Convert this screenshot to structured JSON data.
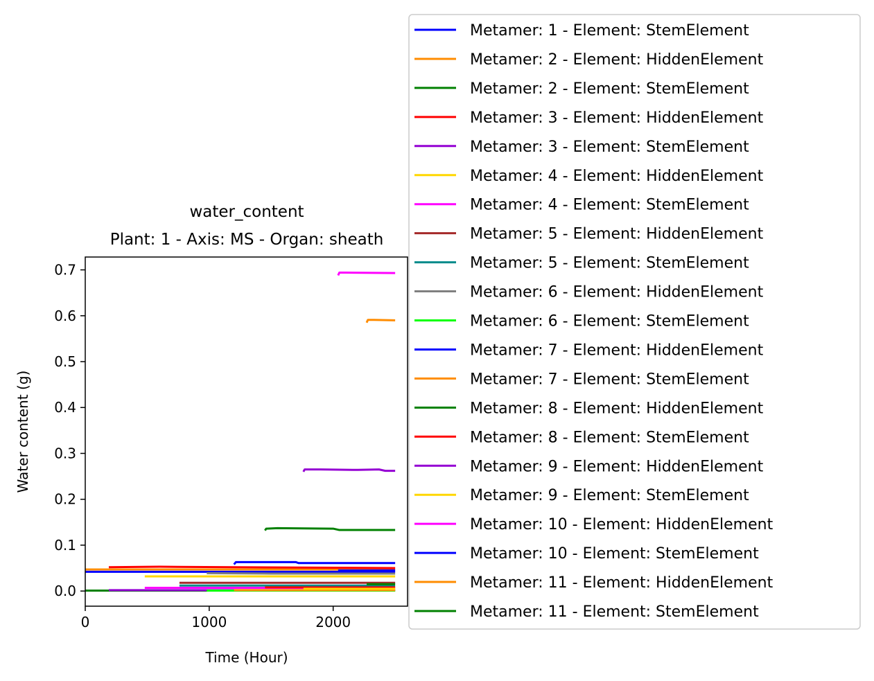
{
  "chart_data": {
    "type": "line",
    "title": "water_content",
    "subtitle": "Plant: 1 - Axis: MS - Organ: sheath",
    "xlabel": "Time (Hour)",
    "ylabel": "Water content (g)",
    "xlim": [
      0,
      2600
    ],
    "ylim": [
      -0.033,
      0.728
    ],
    "xticks": [
      0,
      1000,
      2000
    ],
    "yticks": [
      0.0,
      0.1,
      0.2,
      0.3,
      0.4,
      0.5,
      0.6,
      0.7
    ],
    "xtick_labels": [
      "0",
      "1000",
      "2000"
    ],
    "ytick_labels": [
      "0.0",
      "0.1",
      "0.2",
      "0.3",
      "0.4",
      "0.5",
      "0.6",
      "0.7"
    ],
    "grid": false,
    "legend_position": "outside-right",
    "series": [
      {
        "name": "Metamer: 1 - Element: StemElement",
        "color": "#0000ff",
        "x": [
          0,
          2500
        ],
        "y": [
          0.042,
          0.042
        ]
      },
      {
        "name": "Metamer: 2 - Element: HiddenElement",
        "color": "#ff8c00",
        "x": [
          0,
          2500
        ],
        "y": [
          0.047,
          0.047
        ]
      },
      {
        "name": "Metamer: 2 - Element: StemElement",
        "color": "#008000",
        "x": [
          0,
          2500
        ],
        "y": [
          0.001,
          0.001
        ]
      },
      {
        "name": "Metamer: 3 - Element: HiddenElement",
        "color": "#ff0000",
        "x": [
          190,
          600,
          1200,
          2500
        ],
        "y": [
          0.052,
          0.053,
          0.052,
          0.05
        ]
      },
      {
        "name": "Metamer: 3 - Element: StemElement",
        "color": "#9400d3",
        "x": [
          190,
          2500
        ],
        "y": [
          0.002,
          0.002
        ]
      },
      {
        "name": "Metamer: 4 - Element: HiddenElement",
        "color": "#ffd700",
        "x": [
          480,
          2500
        ],
        "y": [
          0.032,
          0.032
        ]
      },
      {
        "name": "Metamer: 4 - Element: StemElement",
        "color": "#ff00ff",
        "x": [
          480,
          2500
        ],
        "y": [
          0.007,
          0.007
        ]
      },
      {
        "name": "Metamer: 5 - Element: HiddenElement",
        "color": "#a52a2a",
        "x": [
          760,
          2500
        ],
        "y": [
          0.018,
          0.018
        ]
      },
      {
        "name": "Metamer: 5 - Element: StemElement",
        "color": "#008b8b",
        "x": [
          760,
          2500
        ],
        "y": [
          0.012,
          0.012
        ]
      },
      {
        "name": "Metamer: 6 - Element: HiddenElement",
        "color": "#808080",
        "x": [
          980,
          1500,
          2500
        ],
        "y": [
          0.039,
          0.038,
          0.038
        ]
      },
      {
        "name": "Metamer: 6 - Element: StemElement",
        "color": "#00ff00",
        "x": [
          980,
          2500
        ],
        "y": [
          0.001,
          0.001
        ]
      },
      {
        "name": "Metamer: 7 - Element: HiddenElement",
        "color": "#0000ff",
        "x": [
          1200,
          1215,
          1700,
          1720,
          2500
        ],
        "y": [
          0.058,
          0.063,
          0.063,
          0.061,
          0.061
        ]
      },
      {
        "name": "Metamer: 7 - Element: StemElement",
        "color": "#ff8c00",
        "x": [
          1200,
          2500
        ],
        "y": [
          0.002,
          0.002
        ]
      },
      {
        "name": "Metamer: 8 - Element: HiddenElement",
        "color": "#008000",
        "x": [
          1450,
          1460,
          1550,
          2000,
          2050,
          2500
        ],
        "y": [
          0.132,
          0.136,
          0.137,
          0.136,
          0.133,
          0.133
        ]
      },
      {
        "name": "Metamer: 8 - Element: StemElement",
        "color": "#ff0000",
        "x": [
          1450,
          2500
        ],
        "y": [
          0.008,
          0.008
        ]
      },
      {
        "name": "Metamer: 9 - Element: HiddenElement",
        "color": "#9400d3",
        "x": [
          1760,
          1770,
          1900,
          2200,
          2370,
          2420,
          2500
        ],
        "y": [
          0.26,
          0.265,
          0.265,
          0.264,
          0.265,
          0.262,
          0.262
        ]
      },
      {
        "name": "Metamer: 9 - Element: StemElement",
        "color": "#ffd700",
        "x": [
          1760,
          2500
        ],
        "y": [
          0.005,
          0.005
        ]
      },
      {
        "name": "Metamer: 10 - Element: HiddenElement",
        "color": "#ff00ff",
        "x": [
          2040,
          2050,
          2100,
          2500
        ],
        "y": [
          0.688,
          0.694,
          0.694,
          0.693
        ]
      },
      {
        "name": "Metamer: 10 - Element: StemElement",
        "color": "#0000ff",
        "x": [
          2040,
          2500
        ],
        "y": [
          0.045,
          0.045
        ]
      },
      {
        "name": "Metamer: 11 - Element: HiddenElement",
        "color": "#ff8c00",
        "x": [
          2270,
          2280,
          2330,
          2500
        ],
        "y": [
          0.585,
          0.591,
          0.591,
          0.59
        ]
      },
      {
        "name": "Metamer: 11 - Element: StemElement",
        "color": "#008000",
        "x": [
          2270,
          2500
        ],
        "y": [
          0.015,
          0.015
        ]
      }
    ]
  }
}
